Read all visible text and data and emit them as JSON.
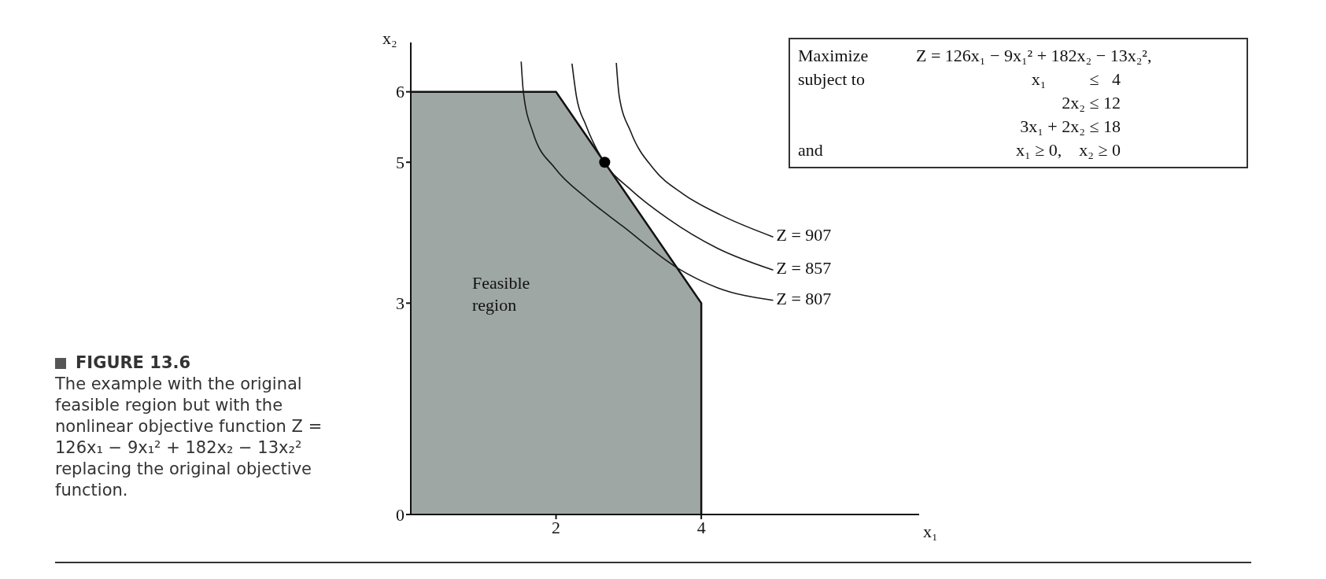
{
  "chart_data": {
    "type": "line",
    "title": "FIGURE 13.6",
    "subtitle": "The example with the original feasible region but with the nonlinear objective function Z = 126x₁ − 9x₁² + 182x₂ − 13x₂² replacing the original objective function.",
    "xlabel": "x₁",
    "ylabel": "x₂",
    "xlim": [
      0,
      7
    ],
    "ylim": [
      0,
      6.7
    ],
    "xticks": [
      2,
      4
    ],
    "yticks": [
      0,
      3,
      5,
      6
    ],
    "line_style": "solid",
    "series": [
      {
        "type": "area",
        "color": "#7d8a84",
        "x": [
          0,
          2,
          4,
          4
        ],
        "values": [
          6,
          6,
          3,
          0
        ]
      },
      {
        "name": "Z = 807",
        "color": "#1a1a1a",
        "x": [
          1.52,
          1.55,
          1.68,
          1.99,
          2.41,
          2.92,
          3.67,
          4.22,
          4.99
        ],
        "values": [
          6.43,
          6.0,
          5.43,
          4.91,
          4.5,
          4.09,
          3.5,
          3.22,
          3.04
        ]
      },
      {
        "name": "Z = 857",
        "color": "#1a1a1a",
        "x": [
          2.22,
          2.28,
          2.41,
          2.65,
          3.03,
          3.54,
          4.22,
          4.99
        ],
        "values": [
          6.4,
          5.94,
          5.53,
          5.02,
          4.61,
          4.2,
          3.78,
          3.47
        ]
      },
      {
        "name": "Z = 907",
        "color": "#1a1a1a",
        "x": [
          2.83,
          2.87,
          3.03,
          3.34,
          3.75,
          4.27,
          4.99
        ],
        "values": [
          6.41,
          5.94,
          5.43,
          4.91,
          4.55,
          4.25,
          3.94
        ]
      },
      {
        "type": "scatter",
        "color": "#000000",
        "x": [
          2.67
        ],
        "values": [
          5
        ]
      }
    ],
    "annotations": [
      "Feasible\nregion",
      "Maximize\tZ = 126x₁ − 9x₁² + 182x₂ − 13x₂²,",
      "subject to\tx₁          ≤   4",
      "\t2x₂ ≤ 12",
      "\t3x₁ + 2x₂ ≤ 18",
      "and\tx₁ ≥ 0,    x₂ ≥ 0"
    ]
  }
}
